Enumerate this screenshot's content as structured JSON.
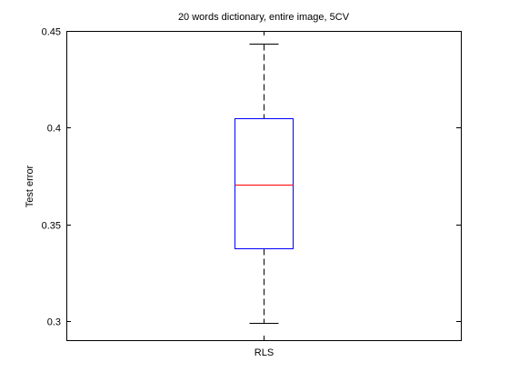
{
  "chart_data": {
    "type": "box",
    "title": "20 words dictionary, entire image, 5CV",
    "xlabel": "",
    "ylabel": "Test error",
    "ylim": [
      0.29,
      0.45
    ],
    "yticks": [
      0.3,
      0.35,
      0.4,
      0.45
    ],
    "ytick_labels": [
      "0.3",
      "0.35",
      "0.4",
      "0.45"
    ],
    "categories": [
      "RLS"
    ],
    "boxes": [
      {
        "name": "RLS",
        "whisker_low": 0.299,
        "q1": 0.3375,
        "median": 0.3705,
        "q3": 0.405,
        "whisker_high": 0.4435
      }
    ],
    "grid": false,
    "colors": {
      "box": "#0000ff",
      "median": "#ff0000",
      "whisker": "#000000",
      "axes": "#000000"
    }
  }
}
